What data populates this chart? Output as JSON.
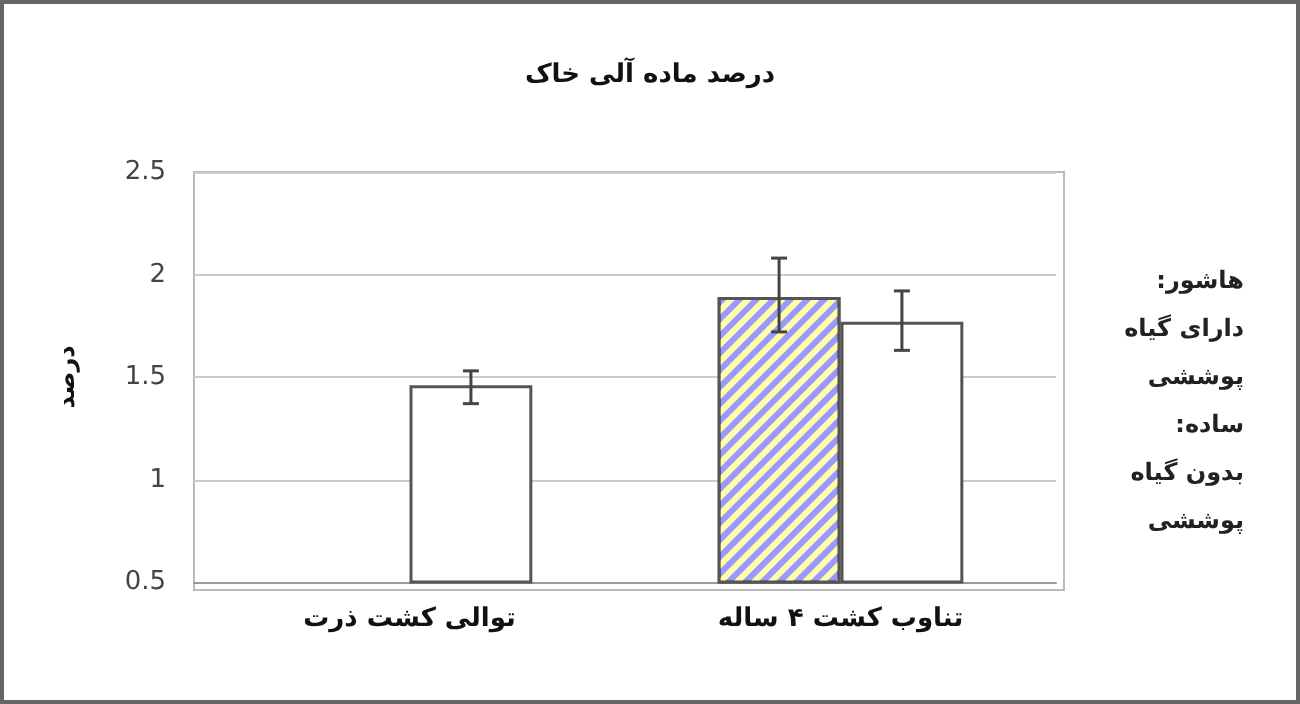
{
  "chart_data": {
    "type": "bar",
    "title": "درصد ماده آلی خاک",
    "ylabel": "درصد",
    "categories": [
      "توالی کشت ذرت",
      "تناوب کشت ۴ ساله"
    ],
    "series": [
      {
        "color": "#9999ff",
        "values": [
          null,
          1.89
        ],
        "errors": [
          null,
          [
            1.72,
            2.08
          ]
        ]
      },
      {
        "color": "#ffffff",
        "values": [
          1.46,
          1.77
        ],
        "errors": [
          [
            1.37,
            1.53
          ],
          [
            1.63,
            1.92
          ]
        ]
      }
    ],
    "ylim": [
      0.5,
      2.5
    ],
    "yticks": [
      0.5,
      1,
      1.5,
      2,
      2.5
    ],
    "grid": "y",
    "annotations": [
      "هاشور:\nدارای گیاه\nپوششی\nساده:\nبدون گیاه\nپوششی"
    ]
  }
}
